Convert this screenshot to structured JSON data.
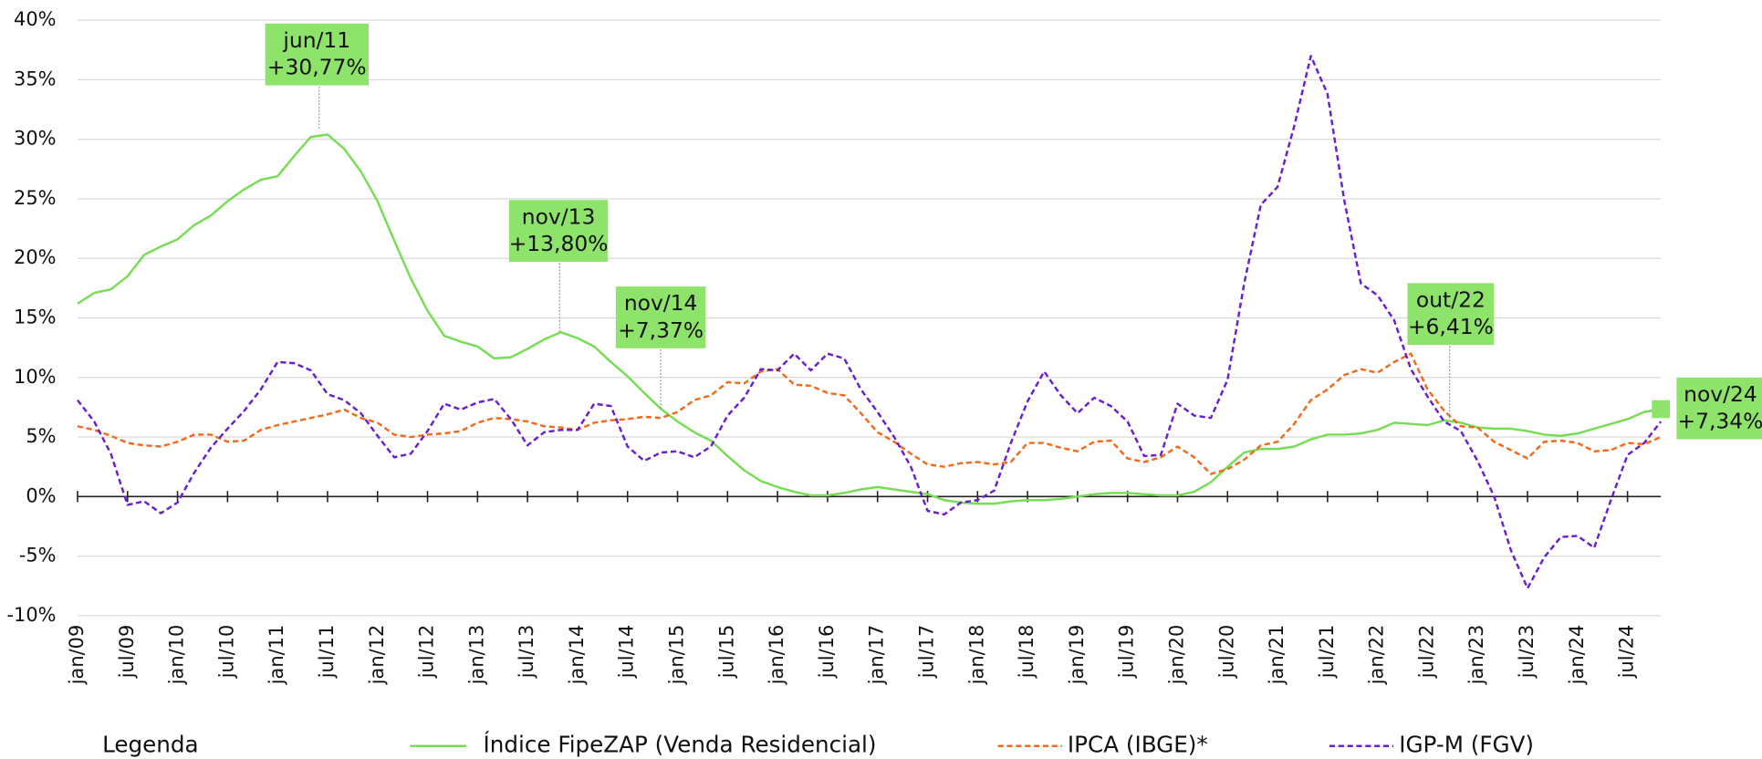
{
  "chart_data": {
    "type": "line",
    "categories": [
      "jan/09",
      null,
      null,
      "jul/09",
      null,
      null,
      "jan/10",
      null,
      null,
      "jul/10",
      null,
      null,
      "jan/11",
      null,
      null,
      "jul/11",
      null,
      null,
      "jan/12",
      null,
      null,
      "jul/12",
      null,
      null,
      "jan/13",
      null,
      null,
      "jul/13",
      null,
      null,
      "jan/14",
      null,
      null,
      "jul/14",
      null,
      null,
      "jan/15",
      null,
      null,
      "jul/15",
      null,
      null,
      "jan/16",
      null,
      null,
      "jul/16",
      null,
      null,
      "jan/17",
      null,
      null,
      "jul/17",
      null,
      null,
      "jan/18",
      null,
      null,
      "jul/18",
      null,
      null,
      "jan/19",
      null,
      null,
      "jul/19",
      null,
      null,
      "jan/20",
      null,
      null,
      "jul/20",
      null,
      null,
      "jan/21",
      null,
      null,
      "jul/21",
      null,
      null,
      "jan/22",
      null,
      null,
      "jul/22",
      null,
      null,
      "jan/23",
      null,
      null,
      "jul/23",
      null,
      null,
      "jan/24",
      null,
      null,
      "jul/24",
      null,
      null
    ],
    "series": [
      {
        "name": "Índice FipeZAP (Venda Residencial)",
        "color": "#77dd55",
        "line_style": "solid",
        "values": [
          16.2,
          17.1,
          17.4,
          18.5,
          20.3,
          21.0,
          21.6,
          22.8,
          23.6,
          24.8,
          25.8,
          26.6,
          26.9,
          28.6,
          30.2,
          30.4,
          29.2,
          27.3,
          24.8,
          21.5,
          18.3,
          15.6,
          13.5,
          13.0,
          12.6,
          11.6,
          11.7,
          12.4,
          13.2,
          13.8,
          13.3,
          12.6,
          11.3,
          10.1,
          8.7,
          7.37,
          6.3,
          5.4,
          4.7,
          3.4,
          2.2,
          1.3,
          0.8,
          0.4,
          0.1,
          0.1,
          0.3,
          0.6,
          0.8,
          0.6,
          0.4,
          0.2,
          -0.3,
          -0.5,
          -0.6,
          -0.6,
          -0.4,
          -0.3,
          -0.3,
          -0.2,
          0.0,
          0.2,
          0.3,
          0.3,
          0.2,
          0.1,
          0.1,
          0.4,
          1.2,
          2.5,
          3.7,
          4.0,
          4.0,
          4.2,
          4.8,
          5.2,
          5.2,
          5.3,
          5.6,
          6.2,
          6.1,
          6.0,
          6.4,
          6.2,
          5.8,
          5.7,
          5.7,
          5.5,
          5.2,
          5.1,
          5.3,
          5.7,
          6.1,
          6.5,
          7.1,
          7.34
        ]
      },
      {
        "name": "IPCA (IBGE)*",
        "color": "#f26a1b",
        "line_style": "dashed",
        "values": [
          5.9,
          5.6,
          5.1,
          4.5,
          4.3,
          4.2,
          4.6,
          5.2,
          5.2,
          4.6,
          4.7,
          5.6,
          6.0,
          6.3,
          6.6,
          6.9,
          7.3,
          6.6,
          6.2,
          5.2,
          5.0,
          5.2,
          5.3,
          5.5,
          6.2,
          6.6,
          6.5,
          6.3,
          5.9,
          5.8,
          5.6,
          6.2,
          6.4,
          6.5,
          6.7,
          6.6,
          7.1,
          8.1,
          8.5,
          9.6,
          9.5,
          10.5,
          10.7,
          9.4,
          9.3,
          8.7,
          8.5,
          7.0,
          5.4,
          4.6,
          3.6,
          2.7,
          2.5,
          2.8,
          2.9,
          2.7,
          2.9,
          4.5,
          4.5,
          4.1,
          3.8,
          4.6,
          4.7,
          3.2,
          2.9,
          3.3,
          4.2,
          3.3,
          1.9,
          2.3,
          3.1,
          4.3,
          4.6,
          6.1,
          8.1,
          9.0,
          10.2,
          10.7,
          10.4,
          11.3,
          12.0,
          9.0,
          7.2,
          5.9,
          5.8,
          4.6,
          3.9,
          3.2,
          4.6,
          4.7,
          4.5,
          3.8,
          3.9,
          4.5,
          4.4,
          5.0
        ]
      },
      {
        "name": "IGP-M (FGV)",
        "color": "#6a1fd1",
        "line_style": "dashed",
        "values": [
          8.1,
          6.3,
          3.6,
          -0.7,
          -0.4,
          -1.4,
          -0.5,
          2.0,
          4.1,
          5.7,
          7.2,
          9.0,
          11.3,
          11.2,
          10.6,
          8.6,
          8.1,
          7.0,
          5.1,
          3.3,
          3.6,
          5.5,
          7.8,
          7.3,
          7.9,
          8.2,
          6.5,
          4.3,
          5.4,
          5.6,
          5.6,
          7.8,
          7.6,
          4.2,
          3.0,
          3.7,
          3.8,
          3.3,
          4.2,
          6.8,
          8.3,
          10.7,
          10.6,
          12.0,
          10.6,
          12.0,
          11.6,
          9.0,
          7.1,
          5.0,
          2.5,
          -1.2,
          -1.5,
          -0.5,
          -0.3,
          0.5,
          4.5,
          8.0,
          10.5,
          8.5,
          7.0,
          8.3,
          7.6,
          6.3,
          3.4,
          3.5,
          7.8,
          6.8,
          6.6,
          9.8,
          17.9,
          24.5,
          26.0,
          31.1,
          37.0,
          33.8,
          24.9,
          17.9,
          16.9,
          14.8,
          10.7,
          8.4,
          6.3,
          5.5,
          3.0,
          0.0,
          -4.5,
          -7.7,
          -5.1,
          -3.4,
          -3.3,
          -4.3,
          -0.3,
          3.5,
          4.5,
          6.3
        ]
      }
    ],
    "ylim": [
      -10,
      40
    ],
    "yticks": [
      {
        "value": -10,
        "label": "-10%"
      },
      {
        "value": -5,
        "label": "-5%"
      },
      {
        "value": 0,
        "label": "0%"
      },
      {
        "value": 5,
        "label": "5%"
      },
      {
        "value": 10,
        "label": "10%"
      },
      {
        "value": 15,
        "label": "15%"
      },
      {
        "value": 20,
        "label": "20%"
      },
      {
        "value": 25,
        "label": "25%"
      },
      {
        "value": 30,
        "label": "30%"
      },
      {
        "value": 35,
        "label": "35%"
      },
      {
        "value": 40,
        "label": "40%"
      }
    ],
    "grid": true,
    "legend_title": "Legenda",
    "legend_position": "bottom",
    "annotations": [
      {
        "label": "jun/11",
        "text": "+30,77%",
        "value": 30.77
      },
      {
        "label": "nov/13",
        "text": "+13,80%",
        "value": 13.8
      },
      {
        "label": "nov/14",
        "text": "+7,37%",
        "value": 7.37
      },
      {
        "label": "out/22",
        "text": "+6,41%",
        "value": 6.41
      },
      {
        "label": "nov/24",
        "text": "+7,34%",
        "value": 7.34
      }
    ],
    "annotation_color": "#8ee36b"
  }
}
